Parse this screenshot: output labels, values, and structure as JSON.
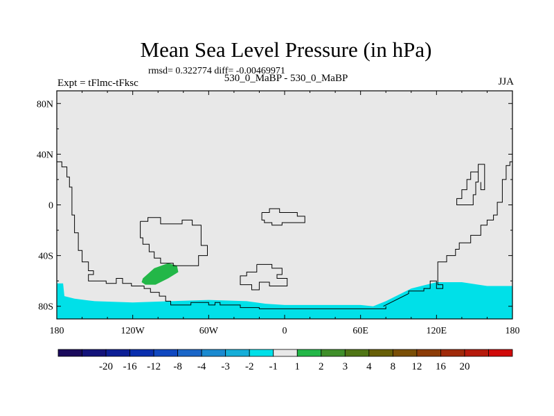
{
  "chart_data": {
    "type": "heatmap",
    "title": "Mean Sea Level Pressure (in hPa)",
    "stats": "rmsd= 0.322774  diff= -0.00469971",
    "subtitle": "530_0_MaBP - 530_0_MaBP",
    "left_label": "Expt = tFlmc-tFksc",
    "right_label": "JJA",
    "xlim": [
      -180,
      180
    ],
    "ylim": [
      -90,
      90
    ],
    "x_ticks": [
      {
        "value": -180,
        "label": "180"
      },
      {
        "value": -120,
        "label": "120W"
      },
      {
        "value": -60,
        "label": "60W"
      },
      {
        "value": 0,
        "label": "0"
      },
      {
        "value": 60,
        "label": "60E"
      },
      {
        "value": 120,
        "label": "120E"
      },
      {
        "value": 180,
        "label": "180"
      }
    ],
    "y_ticks": [
      {
        "value": 80,
        "label": "80N"
      },
      {
        "value": 40,
        "label": "40N"
      },
      {
        "value": 0,
        "label": "0"
      },
      {
        "value": -40,
        "label": "40S"
      },
      {
        "value": -80,
        "label": "80S"
      }
    ],
    "background_color": "#e8e8e8",
    "color_bins": [
      {
        "color": "#1a0a5c"
      },
      {
        "color": "#13137a"
      },
      {
        "color": "#0d1f96"
      },
      {
        "color": "#0a2fae"
      },
      {
        "color": "#1048c0"
      },
      {
        "color": "#1a66c8"
      },
      {
        "color": "#1a8ad0"
      },
      {
        "color": "#15aed8"
      },
      {
        "color": "#00e0e8"
      },
      {
        "color": "#e8e8e8"
      },
      {
        "color": "#23b748"
      },
      {
        "color": "#3f8f2a"
      },
      {
        "color": "#4f7515"
      },
      {
        "color": "#675f08"
      },
      {
        "color": "#7a4f06"
      },
      {
        "color": "#8c3c08"
      },
      {
        "color": "#a02a0a"
      },
      {
        "color": "#b61a0c"
      },
      {
        "color": "#d00a0a"
      }
    ],
    "color_levels": [
      "-20",
      "-16",
      "-12",
      "-8",
      "-4",
      "-3",
      "-2",
      "-1",
      "1",
      "2",
      "3",
      "4",
      "8",
      "12",
      "16",
      "20"
    ],
    "regions": [
      {
        "name": "negative-anomaly-south-pacific",
        "color": "#00e0e8",
        "points": [
          [
            -180,
            -62
          ],
          [
            -175,
            -62
          ],
          [
            -174,
            -72
          ],
          [
            -166,
            -74
          ],
          [
            -150,
            -76
          ],
          [
            -120,
            -77
          ],
          [
            -90,
            -76
          ],
          [
            -60,
            -75
          ],
          [
            -30,
            -76
          ],
          [
            -15,
            -78
          ],
          [
            0,
            -79
          ],
          [
            30,
            -79
          ],
          [
            60,
            -79
          ],
          [
            70,
            -80
          ],
          [
            80,
            -76
          ],
          [
            100,
            -66
          ],
          [
            120,
            -61
          ],
          [
            140,
            -61
          ],
          [
            160,
            -64
          ],
          [
            180,
            -64
          ],
          [
            180,
            -90
          ],
          [
            -180,
            -90
          ]
        ]
      },
      {
        "name": "positive-anomaly-south-america",
        "color": "#23b748",
        "points": [
          [
            -112,
            -58
          ],
          [
            -103,
            -50
          ],
          [
            -92,
            -46
          ],
          [
            -85,
            -48
          ],
          [
            -84,
            -53
          ],
          [
            -92,
            -58
          ],
          [
            -102,
            -63
          ],
          [
            -110,
            -63
          ],
          [
            -113,
            -61
          ]
        ]
      }
    ],
    "coastlines": [
      {
        "name": "coastline-west-continent",
        "points": [
          [
            -180,
            34
          ],
          [
            -176,
            34
          ],
          [
            -176,
            30
          ],
          [
            -172,
            30
          ],
          [
            -172,
            22
          ],
          [
            -170,
            22
          ],
          [
            -170,
            14
          ],
          [
            -168,
            14
          ],
          [
            -168,
            -8
          ],
          [
            -166,
            -8
          ],
          [
            -166,
            -22
          ],
          [
            -163,
            -22
          ],
          [
            -163,
            -36
          ],
          [
            -160,
            -36
          ],
          [
            -160,
            -45
          ],
          [
            -155,
            -45
          ],
          [
            -155,
            -52
          ],
          [
            -151,
            -52
          ],
          [
            -151,
            -55
          ],
          [
            -155,
            -55
          ],
          [
            -155,
            -60
          ],
          [
            -141,
            -60
          ],
          [
            -141,
            -62
          ],
          [
            -133,
            -62
          ],
          [
            -133,
            -58
          ],
          [
            -128,
            -58
          ],
          [
            -128,
            -62
          ],
          [
            -121,
            -62
          ],
          [
            -121,
            -64
          ],
          [
            -111,
            -64
          ],
          [
            -111,
            -66
          ],
          [
            -106,
            -66
          ],
          [
            -106,
            -69
          ],
          [
            -99,
            -69
          ],
          [
            -99,
            -72
          ],
          [
            -94,
            -72
          ],
          [
            -94,
            -76
          ],
          [
            -90,
            -76
          ],
          [
            -90,
            -79
          ],
          [
            -74,
            -79
          ],
          [
            -74,
            -77
          ],
          [
            -60,
            -77
          ],
          [
            -60,
            -79
          ],
          [
            -55,
            -79
          ],
          [
            -55,
            -77
          ],
          [
            -51,
            -77
          ],
          [
            -51,
            -79
          ],
          [
            -35,
            -79
          ],
          [
            -35,
            -81
          ],
          [
            -20,
            -81
          ],
          [
            -20,
            -82
          ],
          [
            0,
            -82
          ],
          [
            80,
            -82
          ],
          [
            80,
            -80
          ]
        ]
      },
      {
        "name": "coastline-east-continent",
        "points": [
          [
            78,
            -80
          ],
          [
            98,
            -70
          ],
          [
            98,
            -68
          ],
          [
            110,
            -68
          ],
          [
            110,
            -66
          ],
          [
            115,
            -66
          ],
          [
            115,
            -60
          ],
          [
            120,
            -60
          ],
          [
            120,
            -66
          ],
          [
            125,
            -66
          ],
          [
            125,
            -63
          ],
          [
            121,
            -63
          ],
          [
            121,
            -45
          ],
          [
            128,
            -45
          ],
          [
            128,
            -40
          ],
          [
            135,
            -40
          ],
          [
            135,
            -35
          ],
          [
            138,
            -35
          ],
          [
            138,
            -30
          ],
          [
            147,
            -30
          ],
          [
            147,
            -24
          ],
          [
            155,
            -24
          ],
          [
            155,
            -16
          ],
          [
            160,
            -16
          ],
          [
            160,
            -12
          ],
          [
            165,
            -12
          ],
          [
            165,
            -8
          ],
          [
            168,
            -8
          ],
          [
            168,
            2
          ],
          [
            172,
            2
          ],
          [
            172,
            20
          ],
          [
            175,
            20
          ],
          [
            175,
            31
          ],
          [
            178,
            31
          ],
          [
            178,
            34
          ],
          [
            180,
            34
          ]
        ]
      },
      {
        "name": "coastline-island-a",
        "points": [
          [
            158,
            32
          ],
          [
            153,
            32
          ],
          [
            153,
            18
          ],
          [
            151,
            18
          ],
          [
            151,
            8
          ],
          [
            149,
            8
          ],
          [
            149,
            0
          ],
          [
            136,
            0
          ],
          [
            136,
            5
          ],
          [
            140,
            5
          ],
          [
            140,
            12
          ],
          [
            144,
            12
          ],
          [
            144,
            20
          ],
          [
            147,
            20
          ],
          [
            147,
            26
          ],
          [
            153,
            26
          ],
          [
            153,
            32
          ],
          [
            158,
            32
          ],
          [
            158,
            12
          ],
          [
            155,
            12
          ],
          [
            155,
            18
          ]
        ]
      },
      {
        "name": "coastline-south-america-shape",
        "points": [
          [
            -114,
            -13
          ],
          [
            -108,
            -13
          ],
          [
            -108,
            -10
          ],
          [
            -98,
            -10
          ],
          [
            -98,
            -15
          ],
          [
            -81,
            -15
          ],
          [
            -81,
            -12
          ],
          [
            -73,
            -12
          ],
          [
            -73,
            -16
          ],
          [
            -66,
            -16
          ],
          [
            -66,
            -32
          ],
          [
            -61,
            -32
          ],
          [
            -61,
            -40
          ],
          [
            -68,
            -40
          ],
          [
            -68,
            -48
          ],
          [
            -88,
            -48
          ],
          [
            -88,
            -46
          ],
          [
            -98,
            -46
          ],
          [
            -98,
            -42
          ],
          [
            -103,
            -42
          ],
          [
            -103,
            -37
          ],
          [
            -107,
            -37
          ],
          [
            -107,
            -31
          ],
          [
            -112,
            -31
          ],
          [
            -112,
            -26
          ],
          [
            -114,
            -26
          ],
          [
            -114,
            -13
          ]
        ]
      },
      {
        "name": "coastline-atlantic-island-north",
        "points": [
          [
            -18,
            -6
          ],
          [
            -12,
            -6
          ],
          [
            -12,
            -3
          ],
          [
            -4,
            -3
          ],
          [
            -4,
            -6
          ],
          [
            10,
            -6
          ],
          [
            10,
            -9
          ],
          [
            16,
            -9
          ],
          [
            16,
            -14
          ],
          [
            -2,
            -14
          ],
          [
            -2,
            -16
          ],
          [
            -10,
            -16
          ],
          [
            -10,
            -14
          ],
          [
            -16,
            -14
          ],
          [
            -16,
            -12
          ],
          [
            -18,
            -12
          ],
          [
            -18,
            -6
          ]
        ]
      },
      {
        "name": "coastline-atlantic-island-south",
        "points": [
          [
            -22,
            -47
          ],
          [
            -10,
            -47
          ],
          [
            -10,
            -50
          ],
          [
            -2,
            -50
          ],
          [
            -2,
            -55
          ],
          [
            -6,
            -55
          ],
          [
            -6,
            -58
          ],
          [
            2,
            -58
          ],
          [
            2,
            -64
          ],
          [
            -12,
            -64
          ],
          [
            -12,
            -61
          ],
          [
            -20,
            -61
          ],
          [
            -20,
            -67
          ],
          [
            -26,
            -67
          ],
          [
            -26,
            -63
          ],
          [
            -35,
            -63
          ],
          [
            -35,
            -56
          ],
          [
            -30,
            -56
          ],
          [
            -30,
            -53
          ],
          [
            -22,
            -53
          ],
          [
            -22,
            -47
          ]
        ]
      }
    ]
  }
}
